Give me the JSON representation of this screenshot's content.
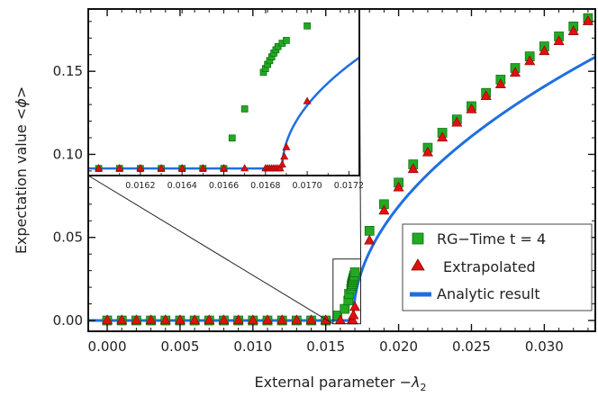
{
  "chart_data": {
    "type": "scatter",
    "xlabel": "External parameter",
    "xlabel_math": "−λ",
    "xlabel_sub": "2",
    "ylabel": "Expectation value",
    "ylabel_math": "<ϕ>",
    "xlim": [
      -0.0013,
      0.0335
    ],
    "ylim": [
      -0.0065,
      0.1875
    ],
    "x_ticks": [
      0.0,
      0.005,
      0.01,
      0.015,
      0.02,
      0.025,
      0.03
    ],
    "x_tick_labels": [
      "0.000",
      "0.005",
      "0.010",
      "0.015",
      "0.020",
      "0.025",
      "0.030"
    ],
    "y_ticks": [
      0.0,
      0.05,
      0.1,
      0.15
    ],
    "y_tick_labels": [
      "0.00",
      "0.05",
      "0.10",
      "0.15"
    ],
    "grid": false,
    "legend_position": "bottom-right",
    "critical_point": 0.01688,
    "analytic_amplitude": 1.23,
    "series": [
      {
        "name": "RG−Time t = 4",
        "marker": "square",
        "color": "#22aa22",
        "points": [
          [
            0.0,
            0.0
          ],
          [
            0.001,
            0.0
          ],
          [
            0.002,
            0.0
          ],
          [
            0.003,
            0.0
          ],
          [
            0.004,
            0.0
          ],
          [
            0.005,
            0.0
          ],
          [
            0.006,
            0.0
          ],
          [
            0.007,
            0.0
          ],
          [
            0.008,
            0.0
          ],
          [
            0.009,
            0.0
          ],
          [
            0.01,
            0.0
          ],
          [
            0.011,
            0.0
          ],
          [
            0.012,
            0.0
          ],
          [
            0.013,
            0.0
          ],
          [
            0.014,
            0.0
          ],
          [
            0.015,
            0.0
          ],
          [
            0.0158,
            0.003
          ],
          [
            0.0163,
            0.007
          ],
          [
            0.01655,
            0.012
          ],
          [
            0.0166,
            0.016
          ],
          [
            0.01675,
            0.019
          ],
          [
            0.01678,
            0.021
          ],
          [
            0.0168,
            0.022
          ],
          [
            0.01683,
            0.023
          ],
          [
            0.01686,
            0.024
          ],
          [
            0.01689,
            0.025
          ],
          [
            0.01692,
            0.026
          ],
          [
            0.01695,
            0.027
          ],
          [
            0.017,
            0.029
          ],
          [
            0.018,
            0.054
          ],
          [
            0.019,
            0.07
          ],
          [
            0.02,
            0.083
          ],
          [
            0.021,
            0.094
          ],
          [
            0.022,
            0.104
          ],
          [
            0.023,
            0.113
          ],
          [
            0.024,
            0.121
          ],
          [
            0.025,
            0.129
          ],
          [
            0.026,
            0.137
          ],
          [
            0.027,
            0.145
          ],
          [
            0.028,
            0.152
          ],
          [
            0.029,
            0.159
          ],
          [
            0.03,
            0.165
          ],
          [
            0.031,
            0.171
          ],
          [
            0.032,
            0.177
          ],
          [
            0.033,
            0.182
          ]
        ]
      },
      {
        "name": "Extrapolated",
        "marker": "triangle",
        "color": "#e01010",
        "points": [
          [
            0.0,
            0.0
          ],
          [
            0.001,
            0.0
          ],
          [
            0.002,
            0.0
          ],
          [
            0.003,
            0.0
          ],
          [
            0.004,
            0.0
          ],
          [
            0.005,
            0.0
          ],
          [
            0.006,
            0.0
          ],
          [
            0.007,
            0.0
          ],
          [
            0.008,
            0.0
          ],
          [
            0.009,
            0.0
          ],
          [
            0.01,
            0.0
          ],
          [
            0.011,
            0.0
          ],
          [
            0.012,
            0.0
          ],
          [
            0.013,
            0.0
          ],
          [
            0.014,
            0.0
          ],
          [
            0.015,
            0.0
          ],
          [
            0.016,
            0.0
          ],
          [
            0.0168,
            0.0
          ],
          [
            0.01685,
            0.0
          ],
          [
            0.0169,
            0.003
          ],
          [
            0.017,
            0.008
          ],
          [
            0.018,
            0.048
          ],
          [
            0.019,
            0.066
          ],
          [
            0.02,
            0.08
          ],
          [
            0.021,
            0.091
          ],
          [
            0.022,
            0.101
          ],
          [
            0.023,
            0.11
          ],
          [
            0.024,
            0.119
          ],
          [
            0.025,
            0.127
          ],
          [
            0.026,
            0.135
          ],
          [
            0.027,
            0.142
          ],
          [
            0.028,
            0.149
          ],
          [
            0.029,
            0.156
          ],
          [
            0.03,
            0.162
          ],
          [
            0.031,
            0.168
          ],
          [
            0.032,
            0.174
          ],
          [
            0.033,
            0.18
          ]
        ]
      },
      {
        "name": "Analytic result",
        "marker": "line",
        "color": "#1f6fe0"
      }
    ],
    "inset": {
      "xlim": [
        0.01595,
        0.01725
      ],
      "ylim": [
        -0.0015,
        0.034
      ],
      "x_ticks": [
        0.0162,
        0.0164,
        0.0166,
        0.0168,
        0.017,
        0.0172
      ],
      "x_tick_labels": [
        "0.0162",
        "0.0164",
        "0.0166",
        "0.0168",
        "0.0170",
        "0.0172"
      ],
      "zoom_box": {
        "x": [
          0.0155,
          0.0174
        ],
        "y": [
          -0.002,
          0.037
        ]
      },
      "green_points": [
        [
          0.016,
          0.0
        ],
        [
          0.0161,
          0.0
        ],
        [
          0.0162,
          0.0
        ],
        [
          0.0163,
          0.0
        ],
        [
          0.0164,
          0.0
        ],
        [
          0.0165,
          0.0
        ],
        [
          0.0166,
          0.0
        ],
        [
          0.01664,
          0.0065
        ],
        [
          0.0167,
          0.0127
        ],
        [
          0.01679,
          0.0205
        ],
        [
          0.0168,
          0.0213
        ],
        [
          0.01681,
          0.0222
        ],
        [
          0.01682,
          0.023
        ],
        [
          0.01683,
          0.0238
        ],
        [
          0.01684,
          0.0246
        ],
        [
          0.01685,
          0.0253
        ],
        [
          0.01686,
          0.026
        ],
        [
          0.01688,
          0.0267
        ],
        [
          0.0169,
          0.0273
        ],
        [
          0.017,
          0.0304
        ]
      ],
      "red_points": [
        [
          0.016,
          0.0
        ],
        [
          0.0161,
          0.0
        ],
        [
          0.0162,
          0.0
        ],
        [
          0.0163,
          0.0
        ],
        [
          0.0164,
          0.0
        ],
        [
          0.0165,
          0.0
        ],
        [
          0.0166,
          0.0
        ],
        [
          0.0167,
          0.0
        ],
        [
          0.0168,
          0.0
        ],
        [
          0.01681,
          0.0
        ],
        [
          0.01682,
          0.0
        ],
        [
          0.01683,
          0.0
        ],
        [
          0.01684,
          0.0
        ],
        [
          0.01685,
          0.0
        ],
        [
          0.01686,
          0.0
        ],
        [
          0.01687,
          0.0
        ],
        [
          0.01688,
          0.0008
        ],
        [
          0.01689,
          0.0025
        ],
        [
          0.0169,
          0.0045
        ],
        [
          0.017,
          0.0143
        ]
      ]
    }
  }
}
